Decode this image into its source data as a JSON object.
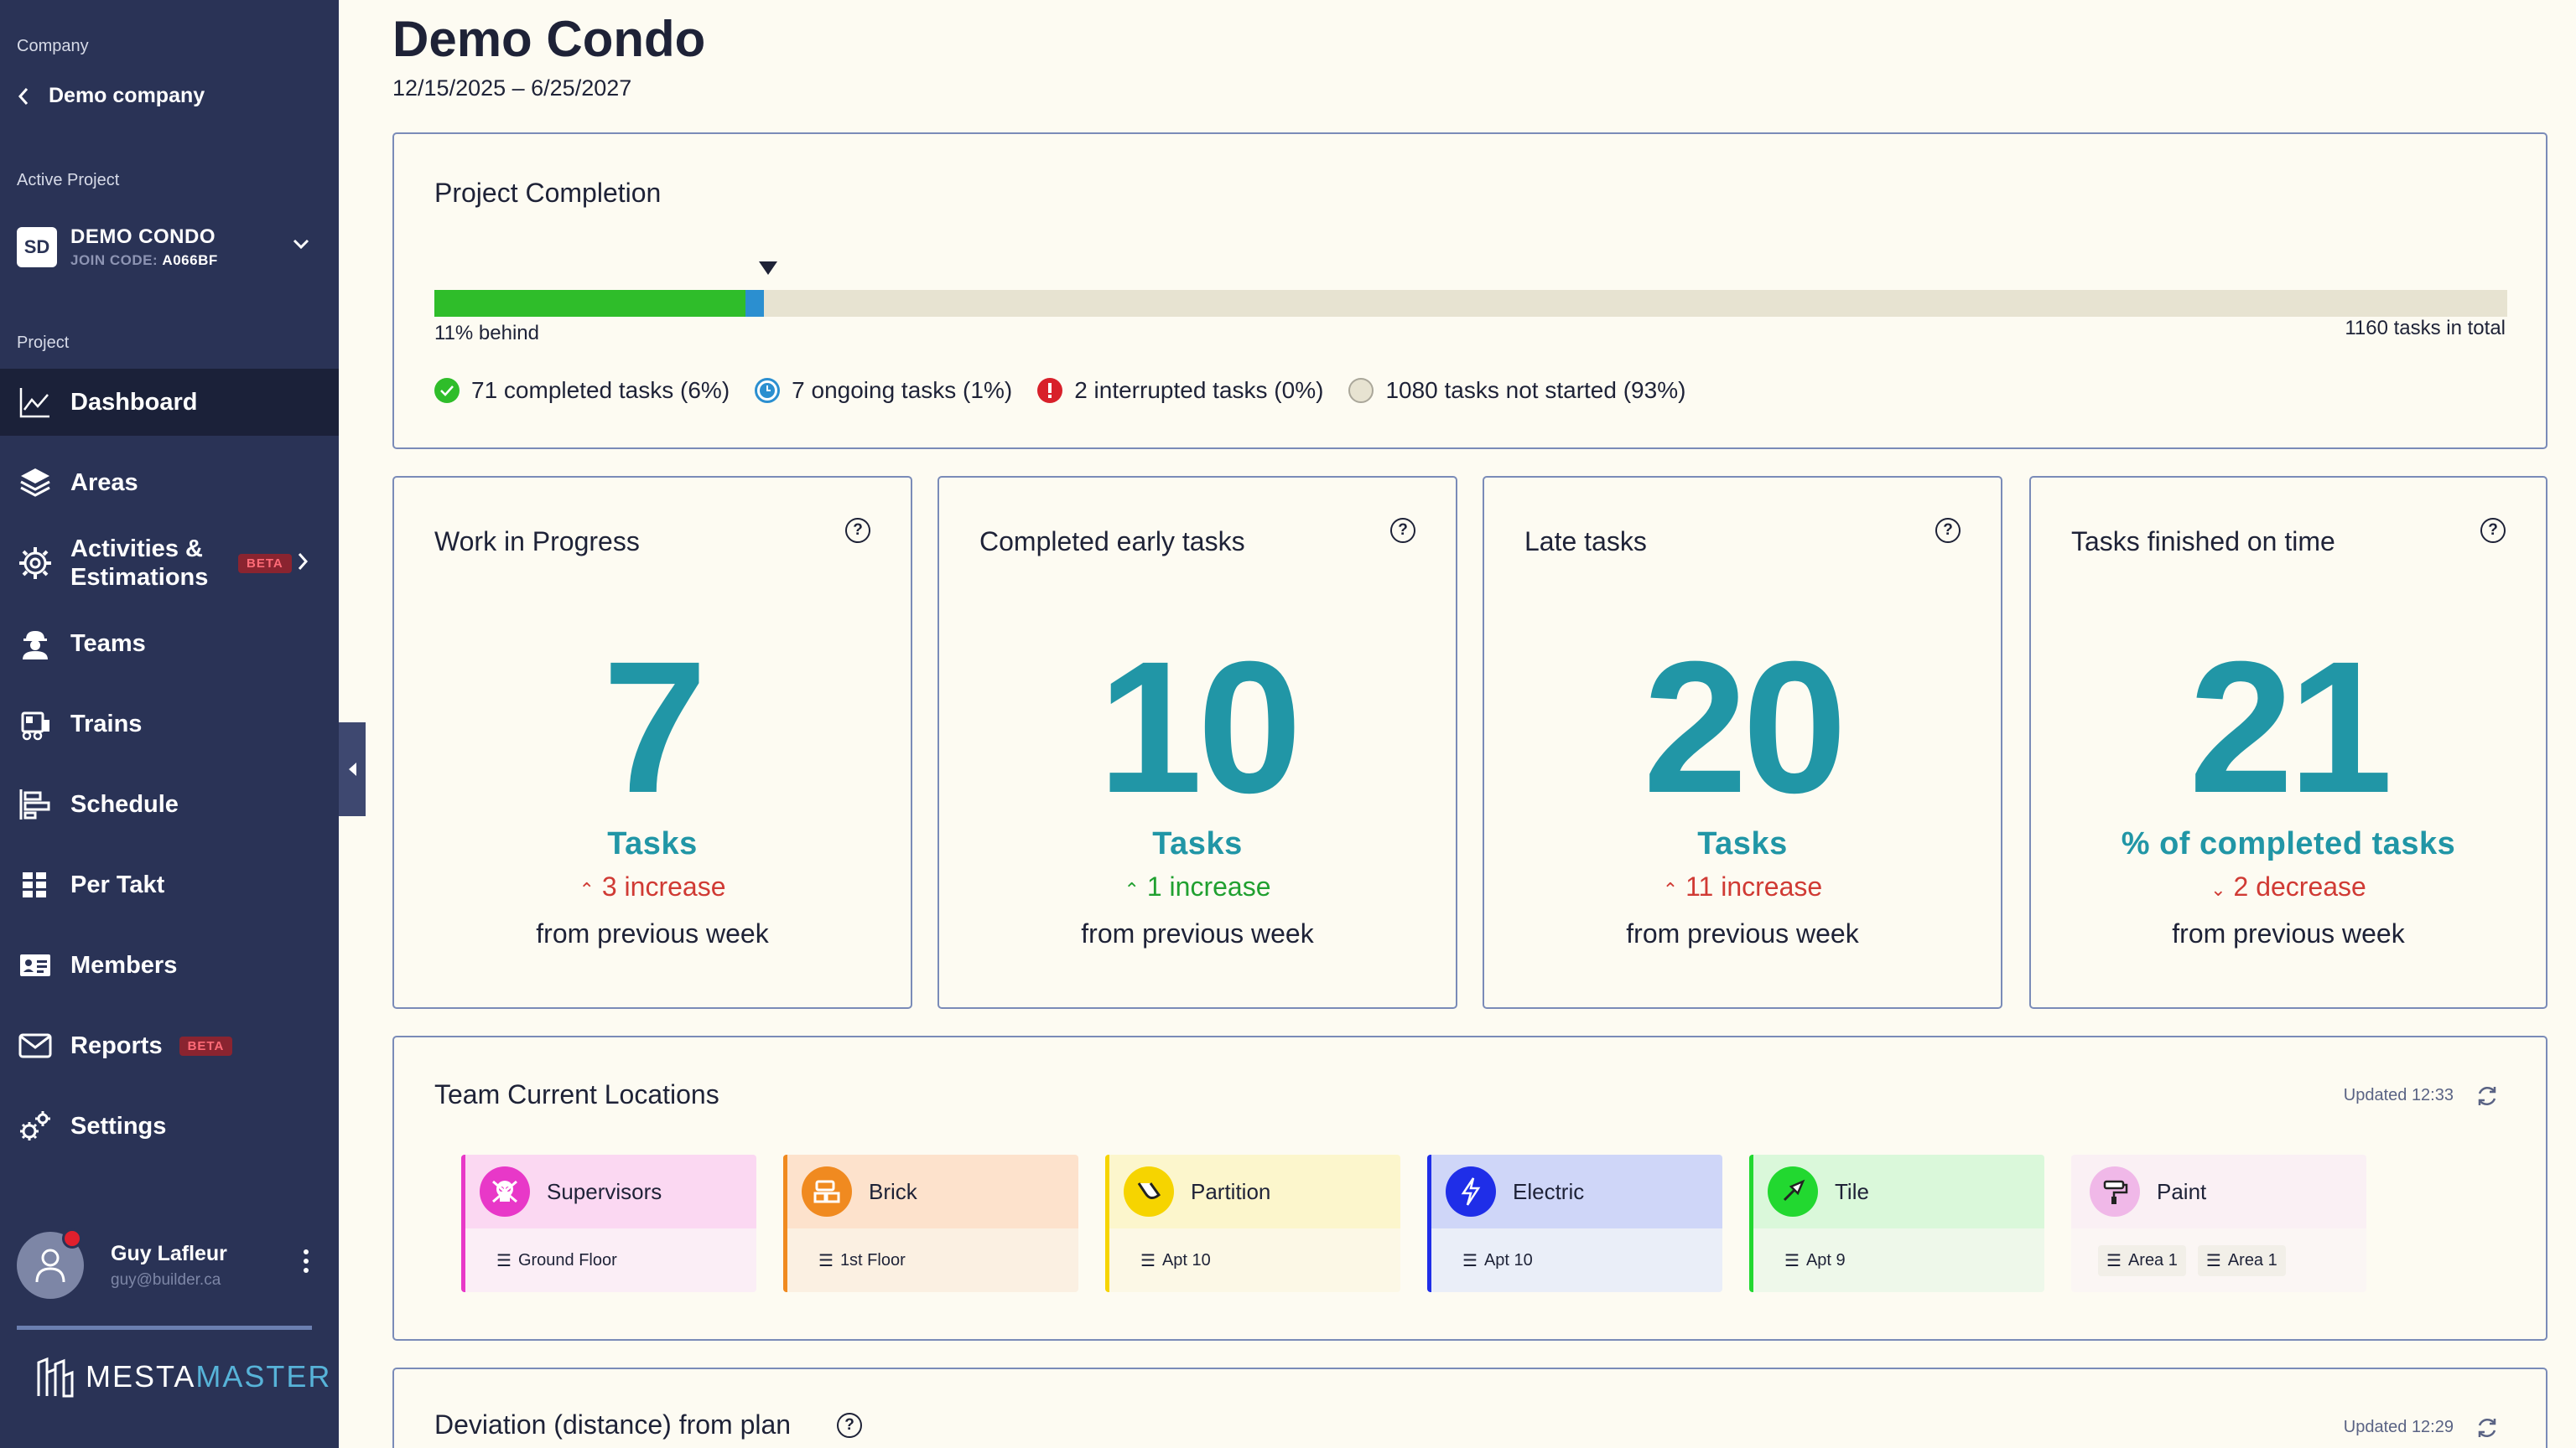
{
  "sidebar": {
    "company_label": "Company",
    "company_name": "Demo company",
    "active_project_label": "Active Project",
    "project_badge": "SD",
    "project_name": "DEMO CONDO",
    "join_code_label": "JOIN CODE:",
    "join_code": "A066BF",
    "project_section_label": "Project",
    "nav": [
      {
        "label": "Dashboard",
        "icon": "chart-line-icon",
        "active": true
      },
      {
        "label": "Areas",
        "icon": "layers-icon"
      },
      {
        "label": "Activities & Estimations",
        "icon": "gear-icon",
        "badge": "BETA"
      },
      {
        "label": "Teams",
        "icon": "worker-icon"
      },
      {
        "label": "Trains",
        "icon": "train-icon"
      },
      {
        "label": "Schedule",
        "icon": "schedule-icon"
      },
      {
        "label": "Per Takt",
        "icon": "grid-icon"
      },
      {
        "label": "Members",
        "icon": "id-card-icon"
      },
      {
        "label": "Reports",
        "icon": "envelope-icon",
        "badge": "BETA"
      },
      {
        "label": "Settings",
        "icon": "gears-icon"
      }
    ],
    "user_name": "Guy Lafleur",
    "user_email": "guy@builder.ca",
    "logo_part1": "MESTA",
    "logo_part2": "MASTER"
  },
  "header": {
    "title": "Demo Condo",
    "dates": "12/15/2025 – 6/25/2027"
  },
  "completion": {
    "title": "Project Completion",
    "behind": "11% behind",
    "total": "1160 tasks in total",
    "completed_fraction": 0.06,
    "ongoing_fraction": 0.01,
    "legend": {
      "completed": "71 completed tasks (6%)",
      "ongoing": "7 ongoing tasks (1%)",
      "interrupted": "2 interrupted tasks (0%)",
      "not_started": "1080 tasks not started (93%)"
    },
    "colors": {
      "completed": "#2fbd2a",
      "ongoing": "#2b8fd0",
      "interrupted": "#d8202a",
      "not_started": "#e7e3d1"
    }
  },
  "kpis": [
    {
      "title": "Work in Progress",
      "value": "7",
      "unit": "Tasks",
      "change_icon": "▲",
      "change": "3 increase",
      "from": "from previous week"
    },
    {
      "title": "Completed early tasks",
      "value": "10",
      "unit": "Tasks",
      "change_icon": "▲",
      "change": "1 increase",
      "from": "from previous week"
    },
    {
      "title": "Late tasks",
      "value": "20",
      "unit": "Tasks",
      "change_icon": "▲",
      "change": "11 increase",
      "from": "from previous week"
    },
    {
      "title": "Tasks finished on time",
      "value": "21",
      "unit": "% of completed tasks",
      "change_icon": "▼",
      "change": "2 decrease",
      "from": "from previous week"
    }
  ],
  "team_locations": {
    "title": "Team Current Locations",
    "updated": "Updated 12:33",
    "teams": [
      {
        "name": "Supervisors",
        "areas": [
          "Ground Floor"
        ],
        "color": "#e838c8",
        "light": "#fbd8f2",
        "lighter": "#fbeef6",
        "icon": "skull-icon"
      },
      {
        "name": "Brick",
        "areas": [
          "1st Floor"
        ],
        "color": "#f08a20",
        "light": "#fde2cc",
        "lighter": "#fbf0e2",
        "icon": "brick-icon"
      },
      {
        "name": "Partition",
        "areas": [
          "Apt 10"
        ],
        "color": "#f6d400",
        "light": "#fcf6cc",
        "lighter": "#fcf8e6",
        "icon": "partition-icon"
      },
      {
        "name": "Electric",
        "areas": [
          "Apt 10"
        ],
        "color": "#1f2ee8",
        "light": "#cfd6f8",
        "lighter": "#eaeef8",
        "icon": "lightning-icon"
      },
      {
        "name": "Tile",
        "areas": [
          "Apt 9"
        ],
        "color": "#22d830",
        "light": "#daf8da",
        "lighter": "#eef8ea",
        "icon": "trowel-icon"
      },
      {
        "name": "Paint",
        "areas": [
          "Area 1",
          "Area 1"
        ],
        "color": "#f0b8e8",
        "light": "#faf0f4",
        "lighter": "#fbf6f4",
        "icon": "paint-roller-icon"
      }
    ]
  },
  "deviation": {
    "title": "Deviation (distance) from plan",
    "updated": "Updated 12:29"
  }
}
